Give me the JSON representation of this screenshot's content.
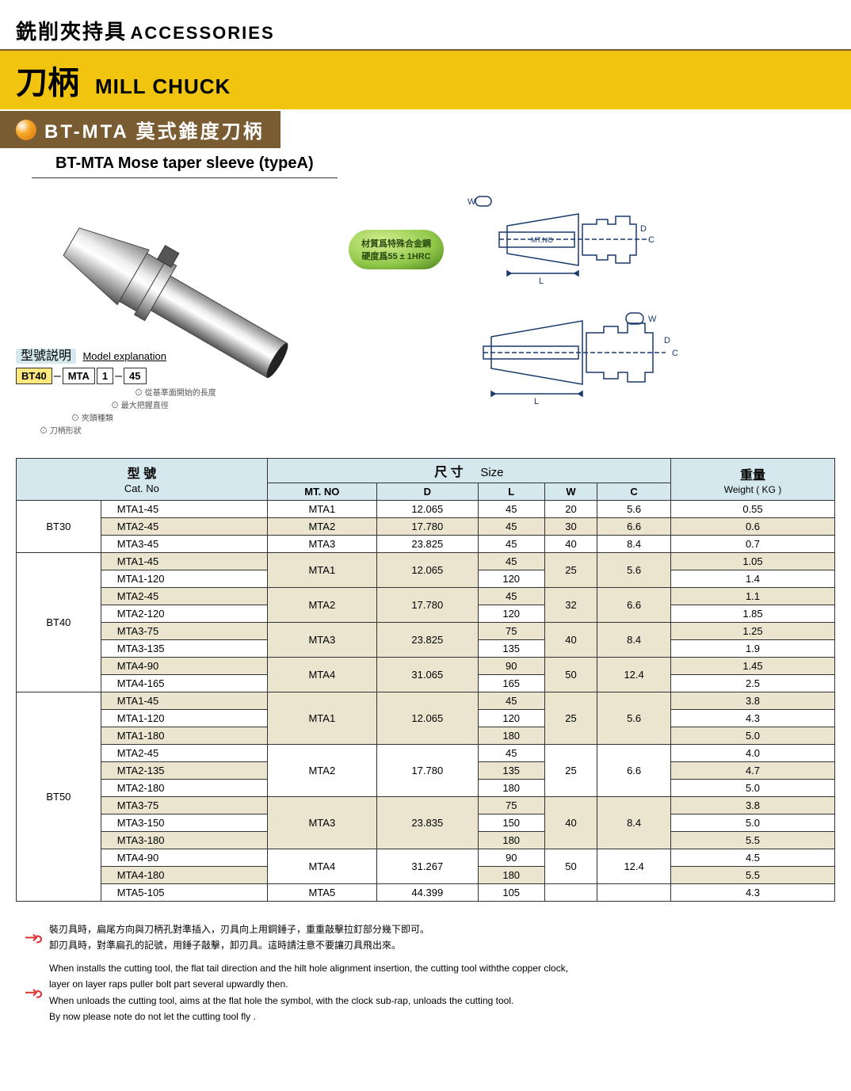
{
  "header": {
    "category_cn": "銑削夾持具",
    "category_en": "ACCESSORIES",
    "title_cn": "刀柄",
    "title_en": "MILL CHUCK",
    "subtitle_cn": "BT-MTA 莫式錐度刀柄",
    "sleeve_label": "BT-MTA  Mose taper sleeve (typeA)"
  },
  "badge": {
    "line1": "材質爲特殊合金鋼",
    "line2": "硬度爲55 ± 1HRC"
  },
  "model_explanation": {
    "label_cn": "型號説明",
    "label_en": "Model explanation",
    "parts": [
      "BT40",
      "MTA",
      "1",
      "45"
    ],
    "desc1": "從基準面開始的長度",
    "desc2": "最大把握直徑",
    "desc3": "夾頭種類",
    "desc4": "刀柄形狀"
  },
  "diagram_labels": {
    "mtno": "MT.NO",
    "w": "W",
    "d": "D",
    "c": "C",
    "l": "L"
  },
  "table": {
    "hdr_model_cn": "型  號",
    "hdr_model_en": "Cat. No",
    "hdr_size_cn": "尺  寸",
    "hdr_size_en": "Size",
    "hdr_weight_cn": "重量",
    "hdr_weight_en": "Weight ( KG )",
    "col_mtno": "MT.  NO",
    "col_d": "D",
    "col_l": "L",
    "col_w": "W",
    "col_c": "C",
    "groups": [
      {
        "name": "BT30",
        "rows": [
          {
            "cat": "MTA1-45",
            "mt": "MTA1",
            "d": "12.065",
            "l": "45",
            "w": "20",
            "c": "5.6",
            "kg": "0.55",
            "alt": false
          },
          {
            "cat": "MTA2-45",
            "mt": "MTA2",
            "d": "17.780",
            "l": "45",
            "w": "30",
            "c": "6.6",
            "kg": "0.6",
            "alt": true
          },
          {
            "cat": "MTA3-45",
            "mt": "MTA3",
            "d": "23.825",
            "l": "45",
            "w": "40",
            "c": "8.4",
            "kg": "0.7",
            "alt": false
          }
        ]
      },
      {
        "name": "BT40",
        "subgroups": [
          {
            "mt": "MTA1",
            "d": "12.065",
            "w": "25",
            "c": "5.6",
            "rows": [
              {
                "cat": "MTA1-45",
                "l": "45",
                "kg": "1.05",
                "alt": true
              },
              {
                "cat": "MTA1-120",
                "l": "120",
                "kg": "1.4",
                "alt": false
              }
            ]
          },
          {
            "mt": "MTA2",
            "d": "17.780",
            "w": "32",
            "c": "6.6",
            "rows": [
              {
                "cat": "MTA2-45",
                "l": "45",
                "kg": "1.1",
                "alt": true
              },
              {
                "cat": "MTA2-120",
                "l": "120",
                "kg": "1.85",
                "alt": false
              }
            ]
          },
          {
            "mt": "MTA3",
            "d": "23.825",
            "w": "40",
            "c": "8.4",
            "rows": [
              {
                "cat": "MTA3-75",
                "l": "75",
                "kg": "1.25",
                "alt": true
              },
              {
                "cat": "MTA3-135",
                "l": "135",
                "kg": "1.9",
                "alt": false
              }
            ]
          },
          {
            "mt": "MTA4",
            "d": "31.065",
            "w": "50",
            "c": "12.4",
            "rows": [
              {
                "cat": "MTA4-90",
                "l": "90",
                "kg": "1.45",
                "alt": true
              },
              {
                "cat": "MTA4-165",
                "l": "165",
                "kg": "2.5",
                "alt": false
              }
            ]
          }
        ]
      },
      {
        "name": "BT50",
        "subgroups": [
          {
            "mt": "MTA1",
            "d": "12.065",
            "w": "25",
            "c": "5.6",
            "rows": [
              {
                "cat": "MTA1-45",
                "l": "45",
                "kg": "3.8",
                "alt": true
              },
              {
                "cat": "MTA1-120",
                "l": "120",
                "kg": "4.3",
                "alt": false
              },
              {
                "cat": "MTA1-180",
                "l": "180",
                "kg": "5.0",
                "alt": true
              }
            ]
          },
          {
            "mt": "MTA2",
            "d": "17.780",
            "w": "25",
            "c": "6.6",
            "rows": [
              {
                "cat": "MTA2-45",
                "l": "45",
                "kg": "4.0",
                "alt": false
              },
              {
                "cat": "MTA2-135",
                "l": "135",
                "kg": "4.7",
                "alt": true
              },
              {
                "cat": "MTA2-180",
                "l": "180",
                "kg": "5.0",
                "alt": false
              }
            ]
          },
          {
            "mt": "MTA3",
            "d": "23.835",
            "w": "40",
            "c": "8.4",
            "rows": [
              {
                "cat": "MTA3-75",
                "l": "75",
                "kg": "3.8",
                "alt": true
              },
              {
                "cat": "MTA3-150",
                "l": "150",
                "kg": "5.0",
                "alt": false
              },
              {
                "cat": "MTA3-180",
                "l": "180",
                "kg": "5.5",
                "alt": true
              }
            ]
          },
          {
            "mt": "MTA4",
            "d": "31.267",
            "w": "50",
            "c": "12.4",
            "rows": [
              {
                "cat": "MTA4-90",
                "l": "90",
                "kg": "4.5",
                "alt": false
              },
              {
                "cat": "MTA4-180",
                "l": "180",
                "kg": "5.5",
                "alt": true
              }
            ]
          },
          {
            "mt": "MTA5",
            "d": "44.399",
            "w": "",
            "c": "",
            "rows": [
              {
                "cat": "MTA5-105",
                "l": "105",
                "kg": "4.3",
                "alt": false
              }
            ]
          }
        ]
      }
    ]
  },
  "notes": {
    "cn1": "裝刃具時，扁尾方向與刀柄孔對準插入，刃具向上用銅錘子，重重敲擊拉釘部分幾下即可。",
    "cn2": "卸刃具時，對準扁孔的記號，用錘子敲擊，卸刃具。這時請注意不要讓刃具飛出來。",
    "en1": "When installs the cutting tool, the flat tail direction and the hilt hole alignment insertion, the cutting tool withthe copper clock,",
    "en2": "layer on layer raps puller bolt part several upwardly then.",
    "en3": "When unloads the cutting tool, aims at the flat hole the symbol, with the clock sub-rap, unloads the cutting tool.",
    "en4": "By now please note do not let the cutting tool fly ."
  },
  "colors": {
    "title_bg": "#f1c40f",
    "sub_bg": "#7a5c32",
    "table_hdr_bg": "#d4e8ee",
    "alt_row_bg": "#ebe5d0"
  }
}
